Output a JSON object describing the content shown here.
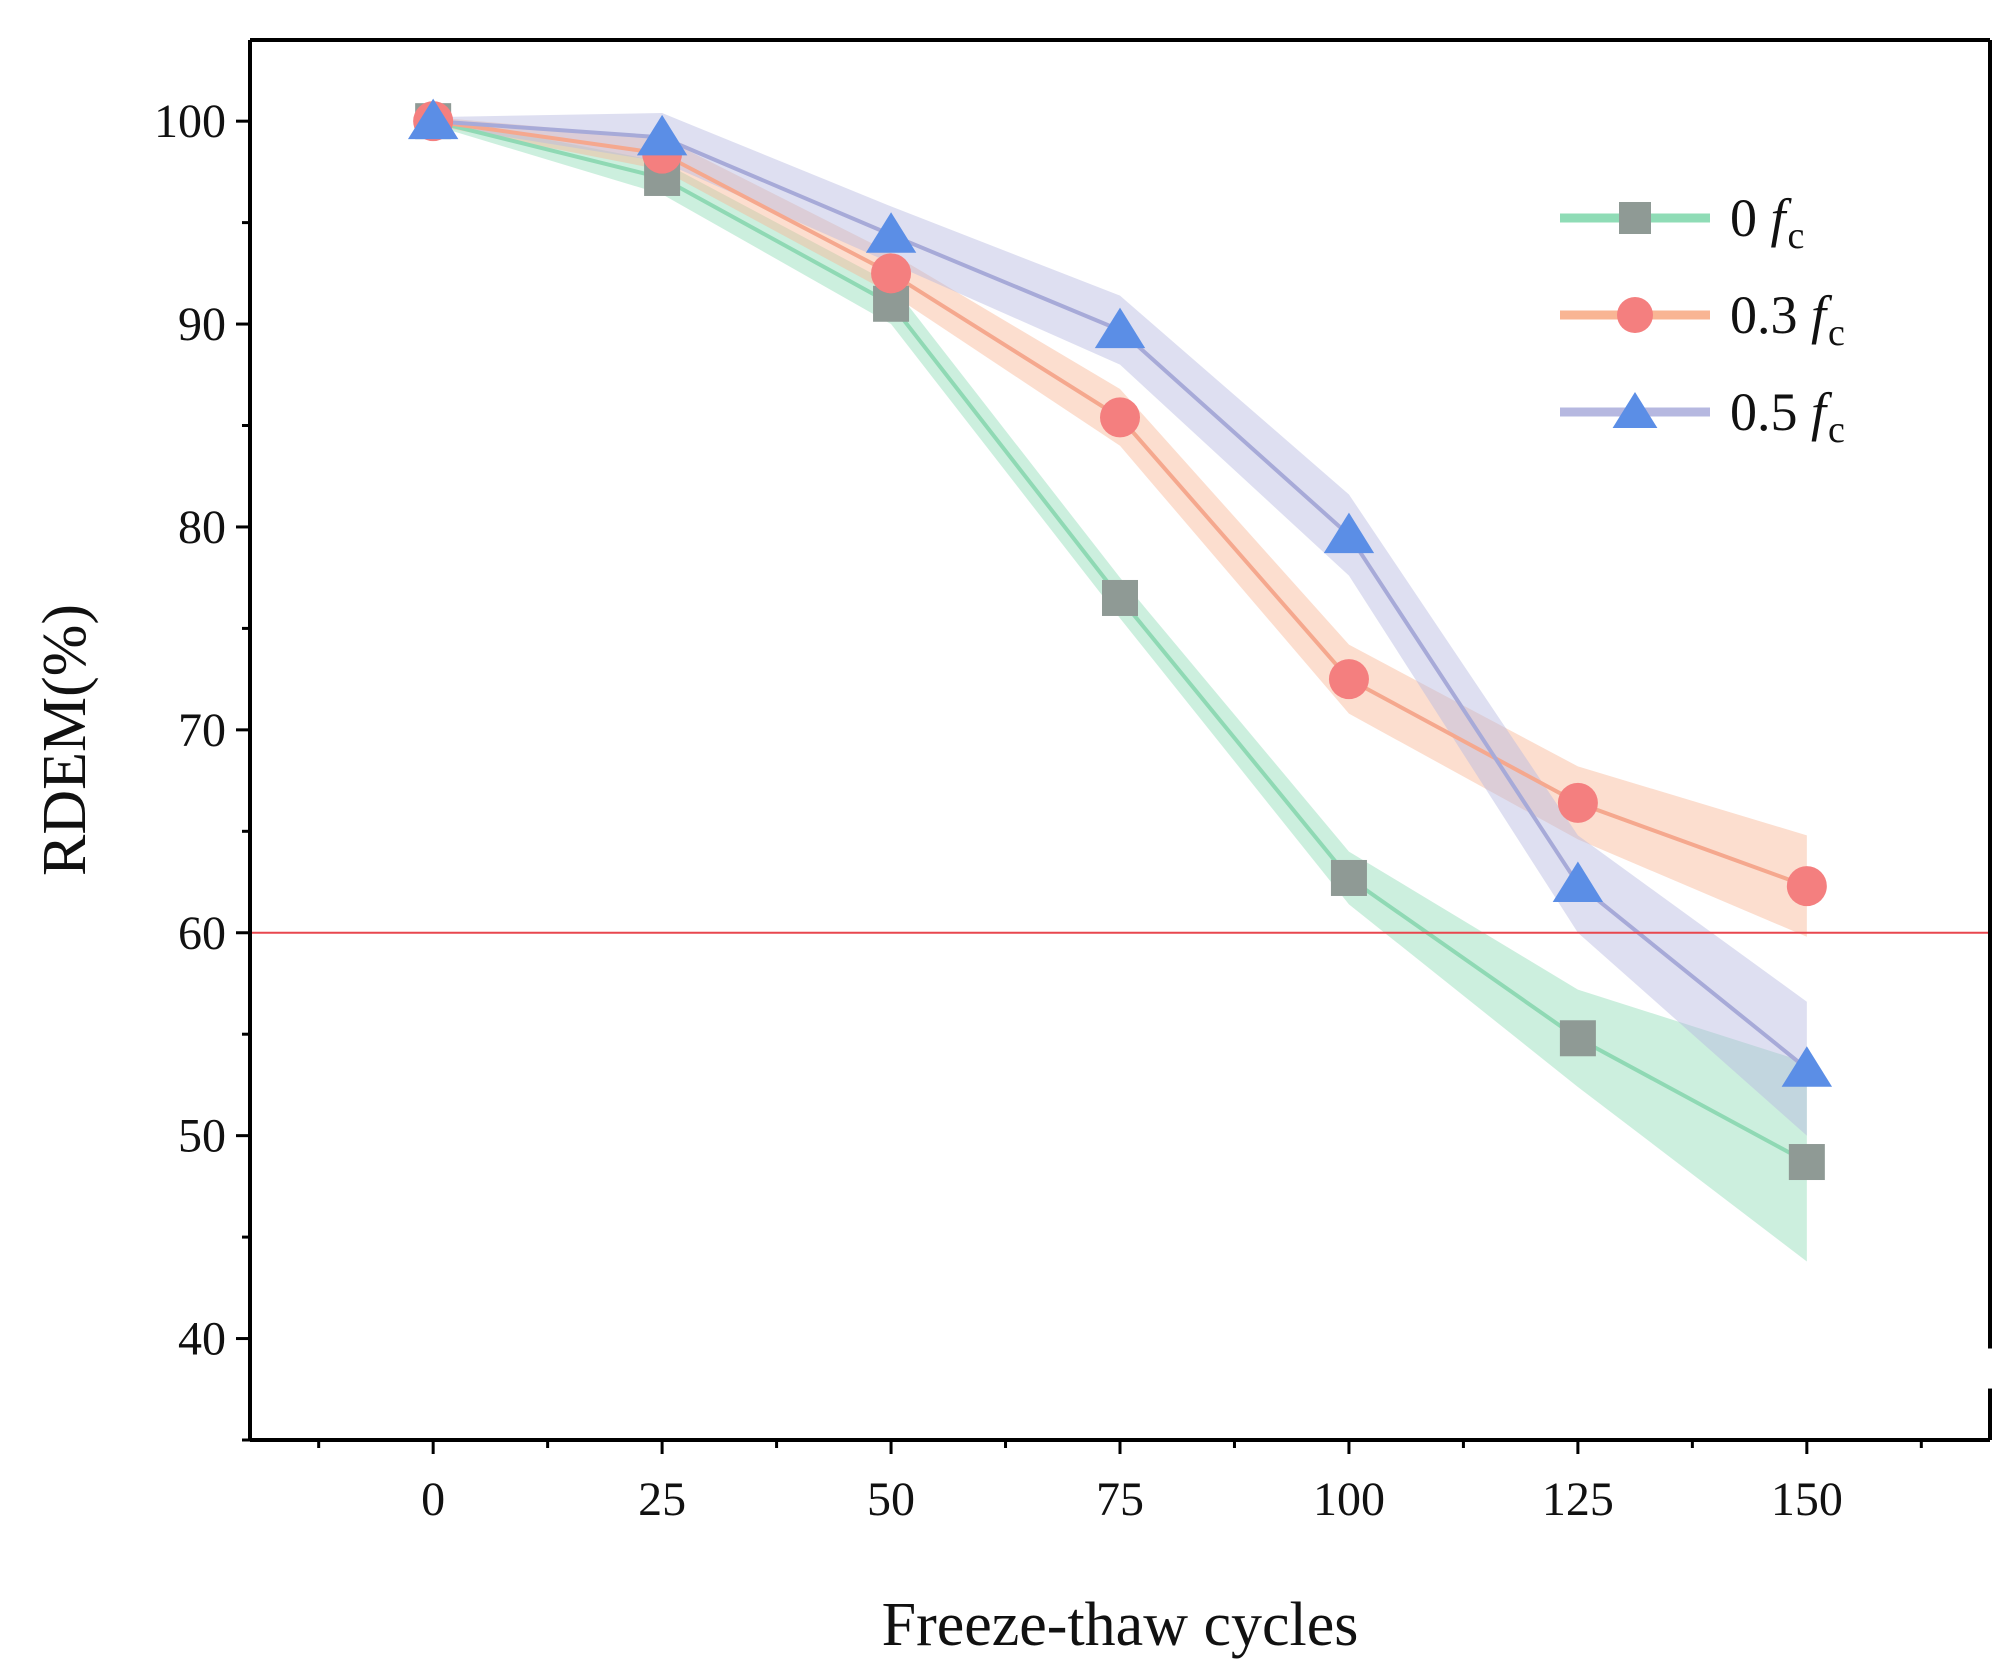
{
  "chart_data": {
    "type": "line",
    "title": "",
    "xlabel": "Freeze-thaw cycles",
    "ylabel": "RDEM(%)",
    "x": [
      0,
      25,
      50,
      75,
      100,
      125,
      150
    ],
    "xlim": [
      -20,
      170
    ],
    "ylim": [
      35,
      104
    ],
    "xticks": [
      0,
      25,
      50,
      75,
      100,
      125,
      150
    ],
    "yticks": [
      40,
      50,
      60,
      70,
      80,
      90,
      100
    ],
    "grid": false,
    "legend_position": "top-right",
    "reference_line": {
      "y": 60,
      "color": "#e8474e"
    },
    "series": [
      {
        "name": "0 f_c",
        "legend_main": "0 ",
        "legend_italic": "f",
        "legend_sub": "c",
        "marker": "square",
        "color": "#8f9a95",
        "band_color": "#8fdcb6",
        "line_color": "#8fd9b4",
        "values": [
          100,
          97.2,
          91.0,
          76.5,
          62.7,
          54.8,
          48.7
        ],
        "upper": [
          100.2,
          98.0,
          92.0,
          77.5,
          64.0,
          57.2,
          53.6
        ],
        "lower": [
          99.8,
          96.4,
          90.0,
          75.5,
          61.4,
          52.4,
          43.8
        ]
      },
      {
        "name": "0.3 f_c",
        "legend_main": "0.3 ",
        "legend_italic": "f",
        "legend_sub": "c",
        "marker": "circle",
        "color": "#f47f7f",
        "band_color": "#f9b594",
        "line_color": "#f5a88e",
        "values": [
          100,
          98.4,
          92.5,
          85.4,
          72.5,
          66.4,
          62.3
        ],
        "upper": [
          100.2,
          99.2,
          93.5,
          86.8,
          74.2,
          68.2,
          64.8
        ],
        "lower": [
          99.8,
          97.6,
          91.5,
          84.0,
          70.8,
          64.6,
          59.8
        ]
      },
      {
        "name": "0.5 f_c",
        "legend_main": "0.5 ",
        "legend_italic": "f",
        "legend_sub": "c",
        "marker": "triangle",
        "color": "#5b8ee6",
        "band_color": "#b6b8e0",
        "line_color": "#a7aad8",
        "values": [
          100,
          99.2,
          94.4,
          89.7,
          79.6,
          62.4,
          53.3
        ],
        "upper": [
          100.2,
          100.4,
          95.8,
          91.4,
          81.6,
          64.8,
          56.6
        ],
        "lower": [
          99.8,
          98.0,
          93.0,
          88.0,
          77.6,
          60.0,
          50.0
        ]
      }
    ]
  }
}
